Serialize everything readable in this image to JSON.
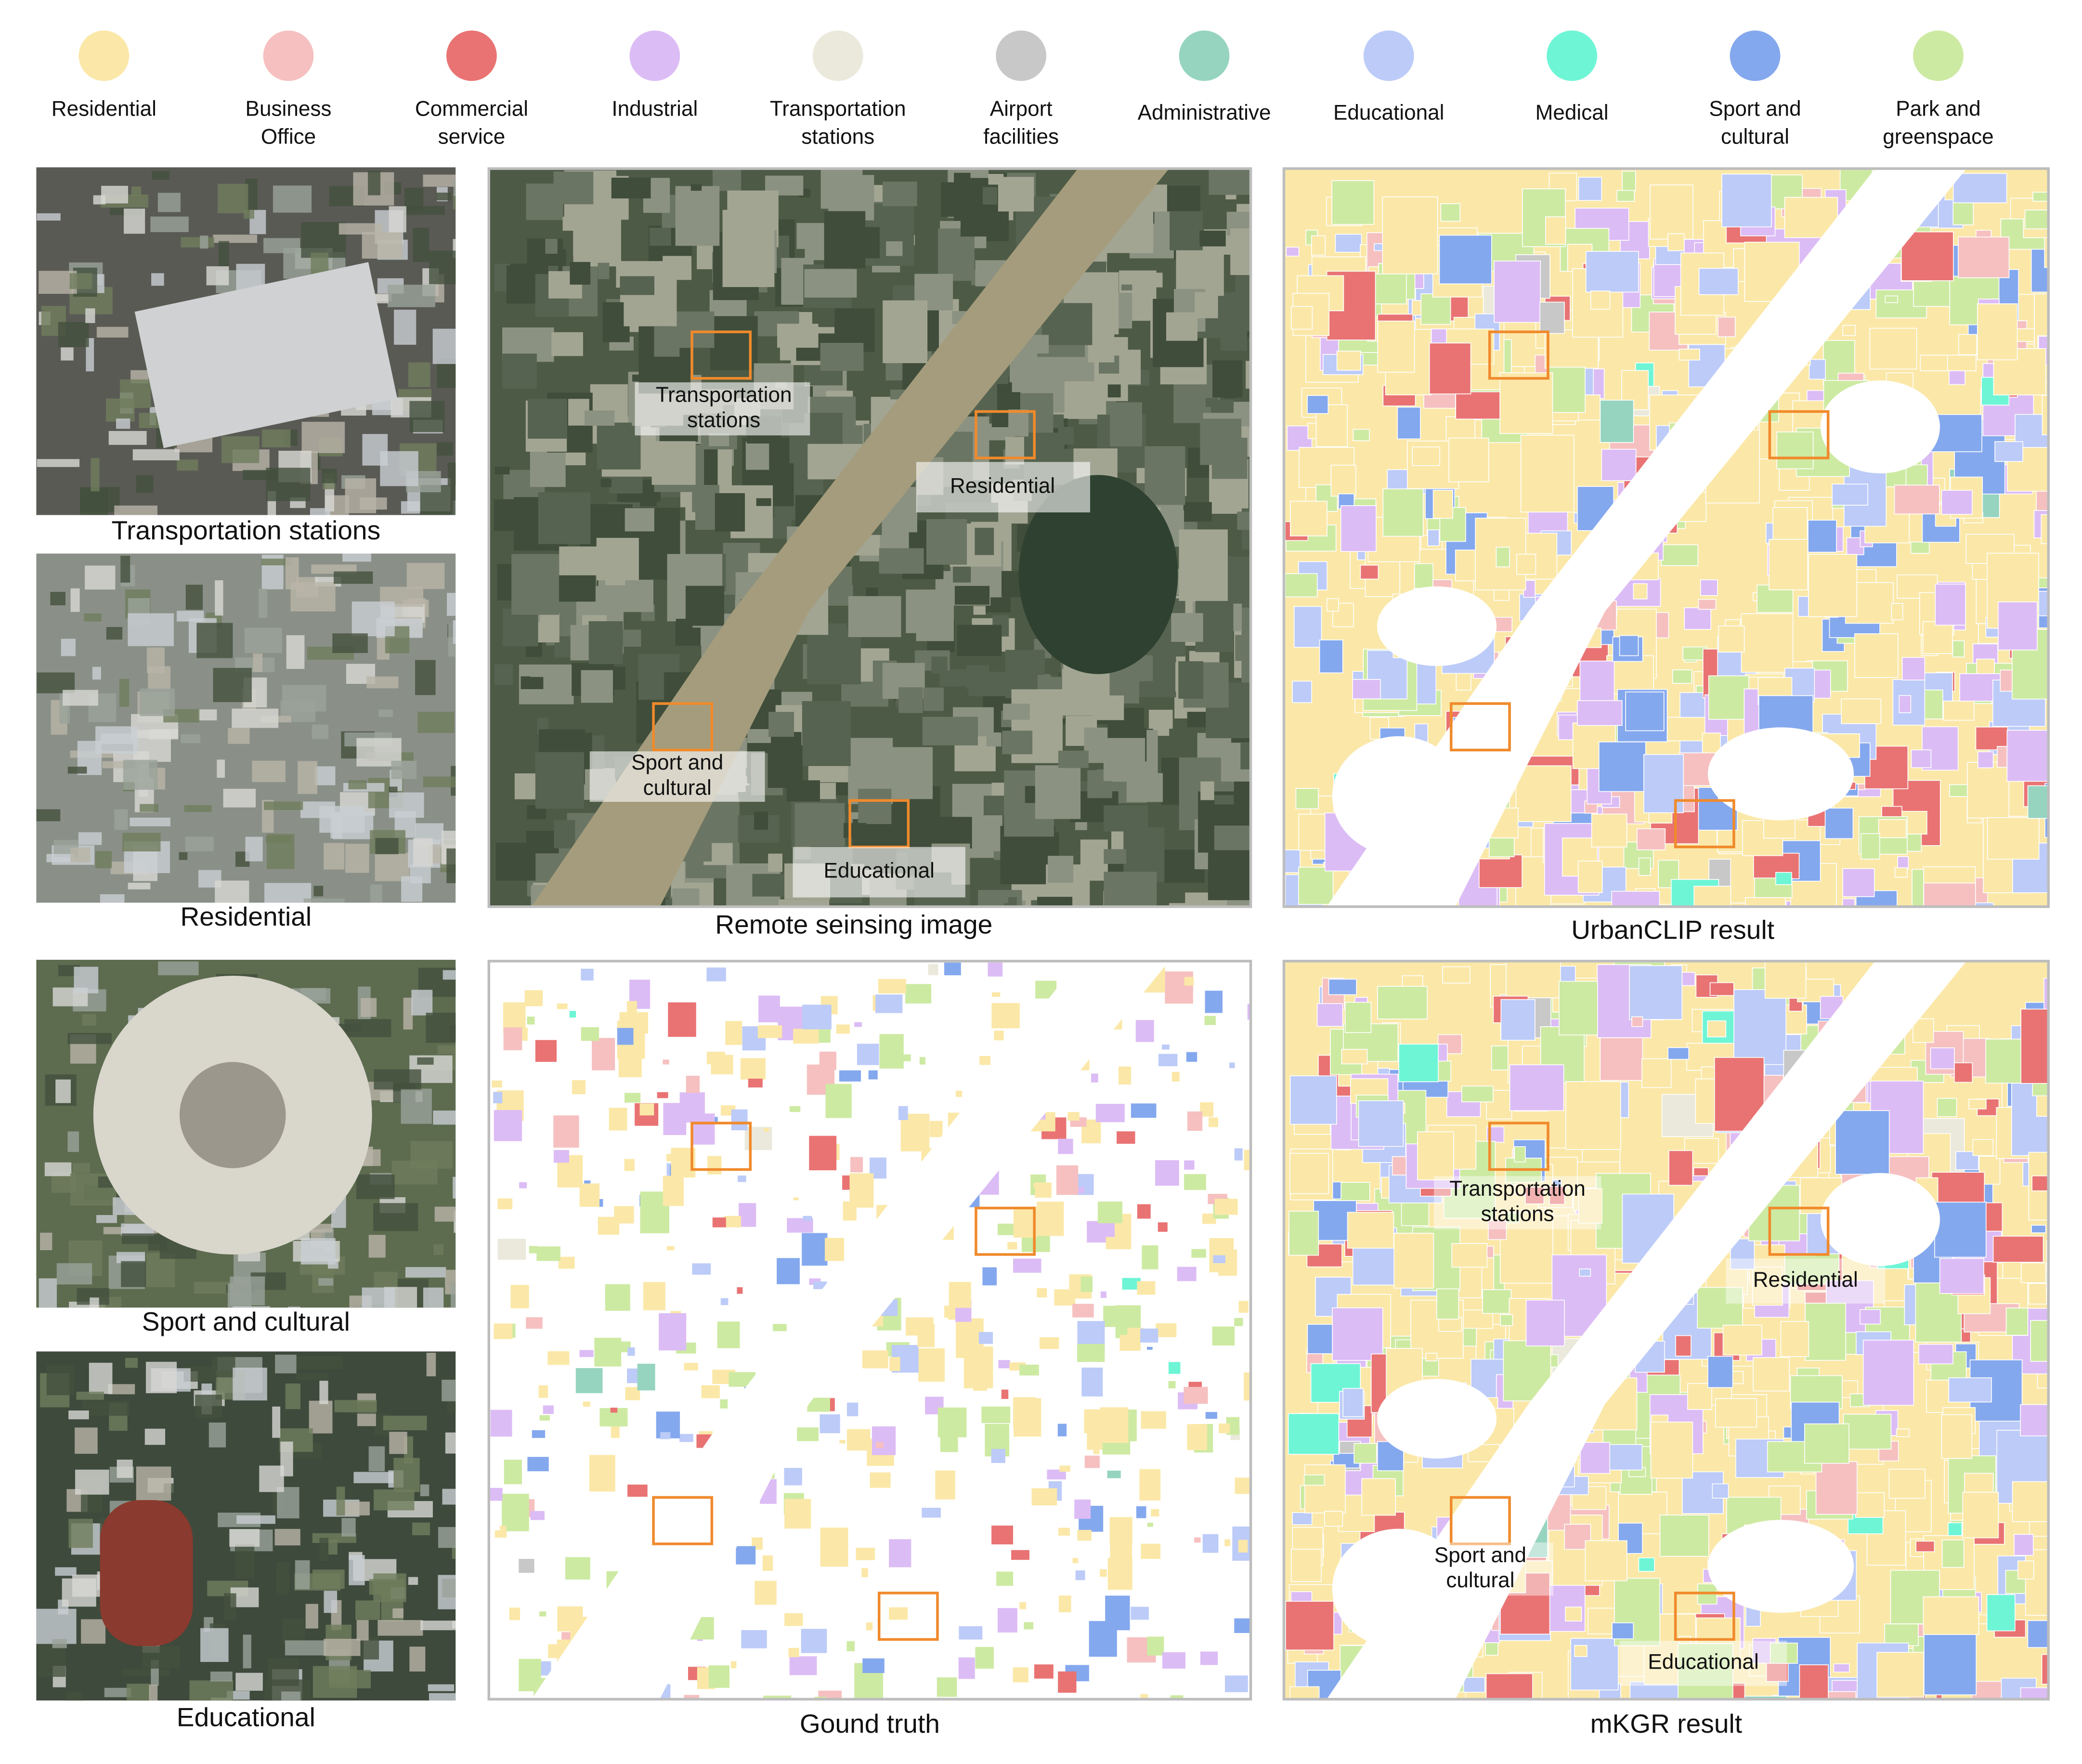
{
  "legend": [
    {
      "label": [
        "Residential"
      ],
      "color": "#fbe8a8"
    },
    {
      "label": [
        "Business",
        "Office"
      ],
      "color": "#f6c0c0"
    },
    {
      "label": [
        "Commercial",
        "service"
      ],
      "color": "#e97373"
    },
    {
      "label": [
        "Industrial"
      ],
      "color": "#dcbcf5"
    },
    {
      "label": [
        "Transportation",
        "stations"
      ],
      "color": "#eae9dc"
    },
    {
      "label": [
        "Airport",
        "facilities"
      ],
      "color": "#c8c8c8"
    },
    {
      "label": [
        "Administrative"
      ],
      "color": "#96d4c0"
    },
    {
      "label": [
        "Educational"
      ],
      "color": "#bccbf8"
    },
    {
      "label": [
        "Medical"
      ],
      "color": "#6ef5d6"
    },
    {
      "label": [
        "Sport and",
        "cultural"
      ],
      "color": "#84a8ee"
    },
    {
      "label": [
        "Park and",
        "greenspace"
      ],
      "color": "#cdeaa2"
    }
  ],
  "samples": [
    {
      "caption": "Transportation stations"
    },
    {
      "caption": "Residential"
    },
    {
      "caption": "Sport and cultural"
    },
    {
      "caption": "Educational"
    }
  ],
  "panels": [
    {
      "caption": "Remote seinsing image",
      "annotations": [
        [
          "Transportation",
          "stations"
        ],
        [
          "Residential"
        ],
        [
          "Sport and",
          "cultural"
        ],
        [
          "Educational"
        ]
      ]
    },
    {
      "caption": "UrbanCLIP result"
    },
    {
      "caption": "Gound truth"
    },
    {
      "caption": "mKGR result",
      "annotations": [
        [
          "Transportation",
          "stations"
        ],
        [
          "Residential"
        ],
        [
          "Sport and",
          "cultural"
        ],
        [
          "Educational"
        ]
      ]
    }
  ]
}
